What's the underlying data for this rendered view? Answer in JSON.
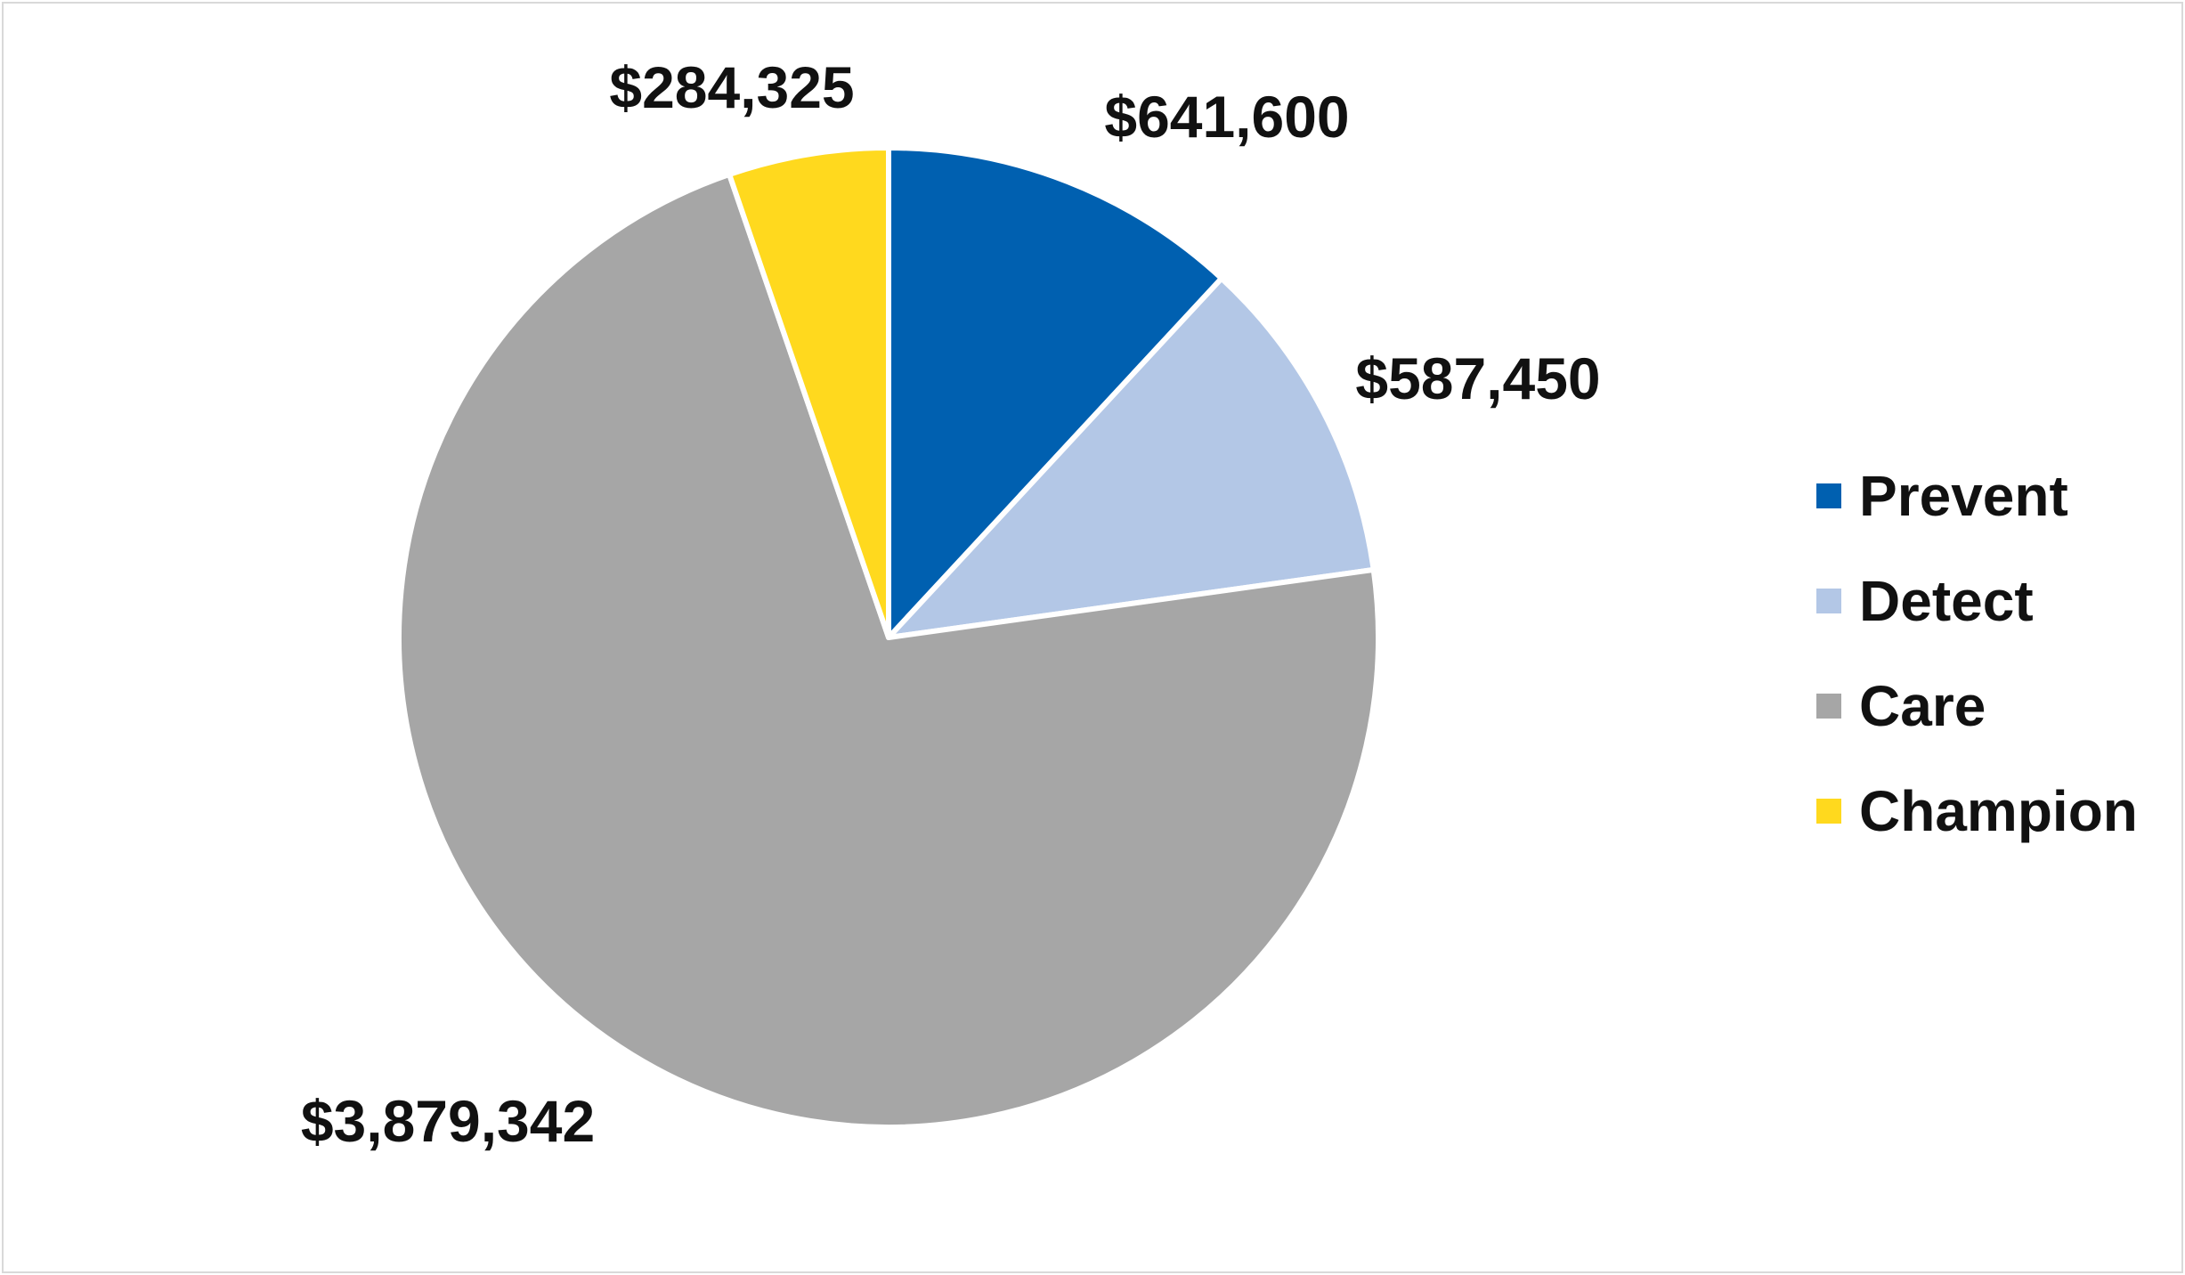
{
  "chart_data": {
    "type": "pie",
    "categories": [
      "Prevent",
      "Detect",
      "Care",
      "Champion"
    ],
    "values": [
      641600,
      587450,
      3879342,
      284325
    ],
    "data_labels": [
      "$641,600",
      "$587,450",
      "$3,879,342",
      "$284,325"
    ],
    "colors": [
      "#0060b0",
      "#b3c7e6",
      "#a6a6a6",
      "#ffd91e"
    ],
    "start_angle_deg": 0,
    "direction": "clockwise",
    "legend_placement": "right",
    "legend": [
      {
        "label": "Prevent",
        "color": "#0060b0"
      },
      {
        "label": "Detect",
        "color": "#b3c7e6"
      },
      {
        "label": "Care",
        "color": "#a6a6a6"
      },
      {
        "label": "Champion",
        "color": "#ffd91e"
      }
    ]
  }
}
